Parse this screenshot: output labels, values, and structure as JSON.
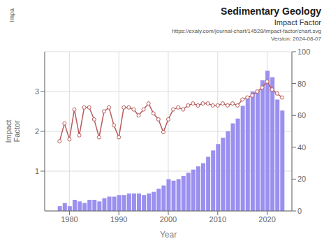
{
  "chart_data": {
    "type": "bar_line",
    "title": "Sedimentary Geology",
    "subtitle": "Impact Factor",
    "annotations": [
      "https://exaly.com/journal-chart/14528/impact-factor/chart.svg",
      "Version: 2024-08-07",
      "Impa"
    ],
    "xlabel": "Year",
    "ylabel": "Impact\nFactor",
    "x": [
      1978,
      1979,
      1980,
      1981,
      1982,
      1983,
      1984,
      1985,
      1986,
      1987,
      1988,
      1989,
      1990,
      1991,
      1992,
      1993,
      1994,
      1995,
      1996,
      1997,
      1998,
      1999,
      2000,
      2001,
      2002,
      2003,
      2004,
      2005,
      2006,
      2007,
      2008,
      2009,
      2010,
      2011,
      2012,
      2013,
      2014,
      2015,
      2016,
      2017,
      2018,
      2019,
      2020,
      2021,
      2022,
      2023
    ],
    "series": [
      {
        "type": "bar",
        "axis": "y2",
        "color": "#9b8fef",
        "values": [
          3,
          5,
          3,
          7,
          6,
          5,
          7,
          7,
          6,
          8,
          9,
          9,
          10,
          10,
          11,
          11,
          11,
          10,
          11,
          12,
          14,
          16,
          20,
          19,
          20,
          22,
          24,
          26,
          28,
          30,
          34,
          38,
          42,
          46,
          50,
          55,
          58,
          66,
          72,
          75,
          76,
          82,
          88,
          84,
          70,
          63
        ]
      },
      {
        "type": "line",
        "color": "#b85c5c",
        "marker": "o",
        "values": [
          1.75,
          2.2,
          1.8,
          2.55,
          1.9,
          2.6,
          2.6,
          2.3,
          1.85,
          2.5,
          2.6,
          2.15,
          1.85,
          2.6,
          2.6,
          2.55,
          2.4,
          2.55,
          2.7,
          2.45,
          2.3,
          1.98,
          2.3,
          2.55,
          2.6,
          2.55,
          2.65,
          2.7,
          2.65,
          2.7,
          2.7,
          2.65,
          2.65,
          2.7,
          2.65,
          2.7,
          2.65,
          2.8,
          2.85,
          2.9,
          3.0,
          3.1,
          3.25,
          3.05,
          2.95,
          2.85
        ]
      }
    ],
    "xlim": [
      1975,
      2025
    ],
    "xticks": [
      1980,
      1990,
      2000,
      2010,
      2020
    ],
    "ylim": [
      0,
      4
    ],
    "yticks": [
      1,
      2,
      3
    ],
    "y2lim": [
      0,
      100
    ],
    "y2ticks": [
      0,
      20,
      40,
      60,
      80,
      100
    ],
    "grid": true
  }
}
